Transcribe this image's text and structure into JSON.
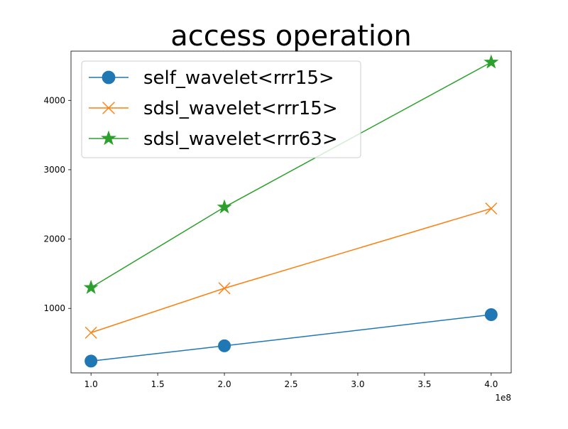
{
  "chart_data": {
    "type": "line",
    "title": "access operation",
    "x": [
      1.0,
      2.0,
      4.0
    ],
    "x_ticks": [
      1.0,
      1.5,
      2.0,
      2.5,
      3.0,
      3.5,
      4.0
    ],
    "x_tick_labels": [
      "1.0",
      "1.5",
      "2.0",
      "2.5",
      "3.0",
      "3.5",
      "4.0"
    ],
    "x_offset_label": "1e8",
    "xlim": [
      0.85,
      4.15
    ],
    "y_ticks": [
      1000,
      2000,
      3000,
      4000
    ],
    "y_tick_labels": [
      "1000",
      "2000",
      "3000",
      "4000"
    ],
    "ylim": [
      70,
      4710
    ],
    "xlabel": "",
    "ylabel": "",
    "grid": false,
    "legend_position": "top-left",
    "series": [
      {
        "name": "self_wavelet<rrr15>",
        "values": [
          240,
          460,
          910
        ],
        "color": "#1f77b4",
        "marker": "circle"
      },
      {
        "name": "sdsl_wavelet<rrr15>",
        "values": [
          650,
          1290,
          2440
        ],
        "color": "#ff7f0e",
        "marker": "x"
      },
      {
        "name": "sdsl_wavelet<rrr63>",
        "values": [
          1300,
          2460,
          4550
        ],
        "color": "#2ca02c",
        "marker": "star"
      }
    ]
  }
}
